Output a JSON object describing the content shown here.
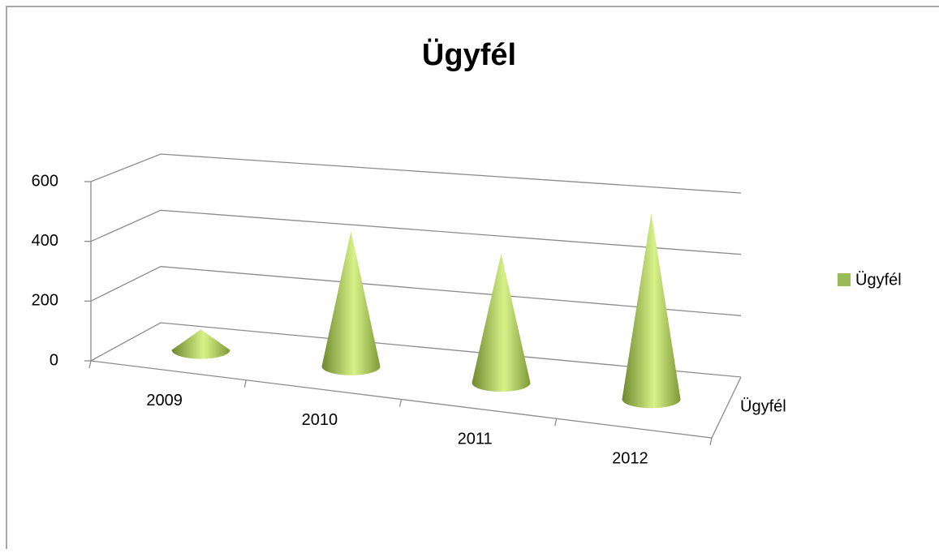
{
  "chart_data": {
    "type": "cone3d",
    "title": "Ügyfél",
    "categories": [
      "2009",
      "2010",
      "2011",
      "2012"
    ],
    "series": [
      {
        "name": "Ügyfél",
        "color": "#9bbb59",
        "values": [
          70,
          450,
          420,
          590
        ]
      }
    ],
    "ylim": [
      0,
      600
    ],
    "yticks": [
      0,
      200,
      400,
      600
    ],
    "grid": true,
    "legend": "right"
  }
}
